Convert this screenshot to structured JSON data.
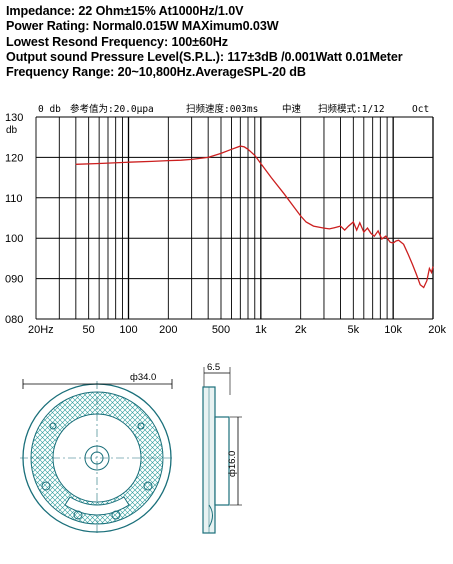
{
  "specs": {
    "impedance": "Impedance: 22 Ohm±15% At1000Hz/1.0V",
    "power": "Power Rating: Normal0.015W MAXimum0.03W",
    "resonance": "Lowest Resond Frequency: 100±60Hz",
    "spl": "Output sound Pressure Level(S.P.L.): 117±3dB /0.001Watt 0.01Meter",
    "range": "Frequency Range: 20~10,800Hz.AverageSPL-20 dB"
  },
  "chart_header": {
    "ref": "0 db",
    "ref_value": "参考值为:20.0μpa",
    "sweep": "扫频速度:003ms",
    "speed": "中速",
    "mode": "扫频模式:1/12",
    "oct": "Oct"
  },
  "colors": {
    "curve": "#cc1f1f",
    "grid": "#000000"
  },
  "chart_data": {
    "type": "line",
    "xscale": "log",
    "xlim": [
      20,
      20000
    ],
    "ylim": [
      80,
      130
    ],
    "ylabel": "db",
    "grid": true,
    "x_ticks": [
      {
        "value": 20,
        "label": "20Hz"
      },
      {
        "value": 50,
        "label": "50"
      },
      {
        "value": 100,
        "label": "100"
      },
      {
        "value": 200,
        "label": "200"
      },
      {
        "value": 500,
        "label": "500"
      },
      {
        "value": 1000,
        "label": "1k"
      },
      {
        "value": 2000,
        "label": "2k"
      },
      {
        "value": 5000,
        "label": "5k"
      },
      {
        "value": 10000,
        "label": "10k"
      },
      {
        "value": 20000,
        "label": "20k"
      }
    ],
    "y_ticks": [
      {
        "value": 130,
        "label": "130"
      },
      {
        "value": 120,
        "label": "120"
      },
      {
        "value": 110,
        "label": "110"
      },
      {
        "value": 100,
        "label": "100"
      },
      {
        "value": 90,
        "label": "090"
      },
      {
        "value": 80,
        "label": "080"
      }
    ],
    "series": [
      {
        "x": [
          40,
          60,
          100,
          150,
          200,
          250,
          300,
          400,
          500,
          600,
          700,
          750,
          800,
          900,
          1000,
          1200,
          1500,
          1800,
          2000,
          2200,
          2500,
          3000,
          3300,
          3600,
          4000,
          4300,
          4600,
          5000,
          5300,
          5600,
          6000,
          6400,
          6800,
          7200,
          7700,
          8200,
          8800,
          9500,
          10000,
          10500,
          11000,
          12000,
          13000,
          14000,
          15000,
          16000,
          17000,
          18000,
          18800,
          19500,
          20000
        ],
        "y": [
          118.3,
          118.5,
          118.8,
          119.0,
          119.2,
          119.3,
          119.5,
          120.0,
          121.0,
          122.0,
          122.8,
          122.6,
          122.0,
          120.5,
          118.5,
          115.0,
          111.0,
          107.5,
          105.5,
          104.0,
          103.0,
          102.5,
          102.3,
          102.6,
          103.0,
          102.0,
          103.0,
          104.0,
          102.0,
          103.8,
          101.5,
          102.5,
          101.2,
          100.5,
          101.8,
          99.8,
          100.5,
          99.0,
          98.8,
          99.3,
          99.5,
          98.5,
          96.0,
          93.5,
          91.0,
          88.5,
          87.8,
          89.5,
          92.5,
          91.5,
          93.0
        ]
      }
    ]
  },
  "drawing": {
    "outer_dim": "ф34.0",
    "inner_dim": "ф16.0",
    "depth_dim": "6.5"
  }
}
